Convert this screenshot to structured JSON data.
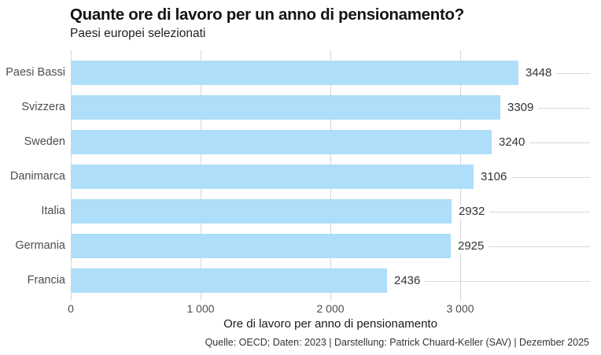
{
  "header": {
    "title": "Quante ore di lavoro per un anno di pensionamento?",
    "subtitle": "Paesi europei selezionati"
  },
  "chart_data": {
    "type": "bar",
    "orientation": "horizontal",
    "title": "Quante ore di lavoro per un anno di pensionamento?",
    "subtitle": "Paesi europei selezionati",
    "categories": [
      "Paesi Bassi",
      "Svizzera",
      "Sweden",
      "Danimarca",
      "Italia",
      "Germania",
      "Francia"
    ],
    "values": [
      3448,
      3309,
      3240,
      3106,
      2932,
      2925,
      2436
    ],
    "value_labels": [
      "3448",
      "3309",
      "3240",
      "3106",
      "2932",
      "2925",
      "2436"
    ],
    "xlabel": "Ore di lavoro per anno di pensionamento",
    "ylabel": "",
    "xlim": [
      0,
      4000
    ],
    "xticks": [
      0,
      1000,
      2000,
      3000
    ],
    "xtick_labels": [
      "0",
      "1 000",
      "2 000",
      "3 000"
    ],
    "grid": true,
    "legend": false,
    "bar_color": "#AEDEF9",
    "gridline_color": "#d6d6d6",
    "leader_line_color": "#d8d8d8"
  },
  "footer": {
    "source": "Quelle: OECD; Daten: 2023 | Darstellung: Patrick Chuard-Keller (SAV) | Dezember 2025"
  }
}
